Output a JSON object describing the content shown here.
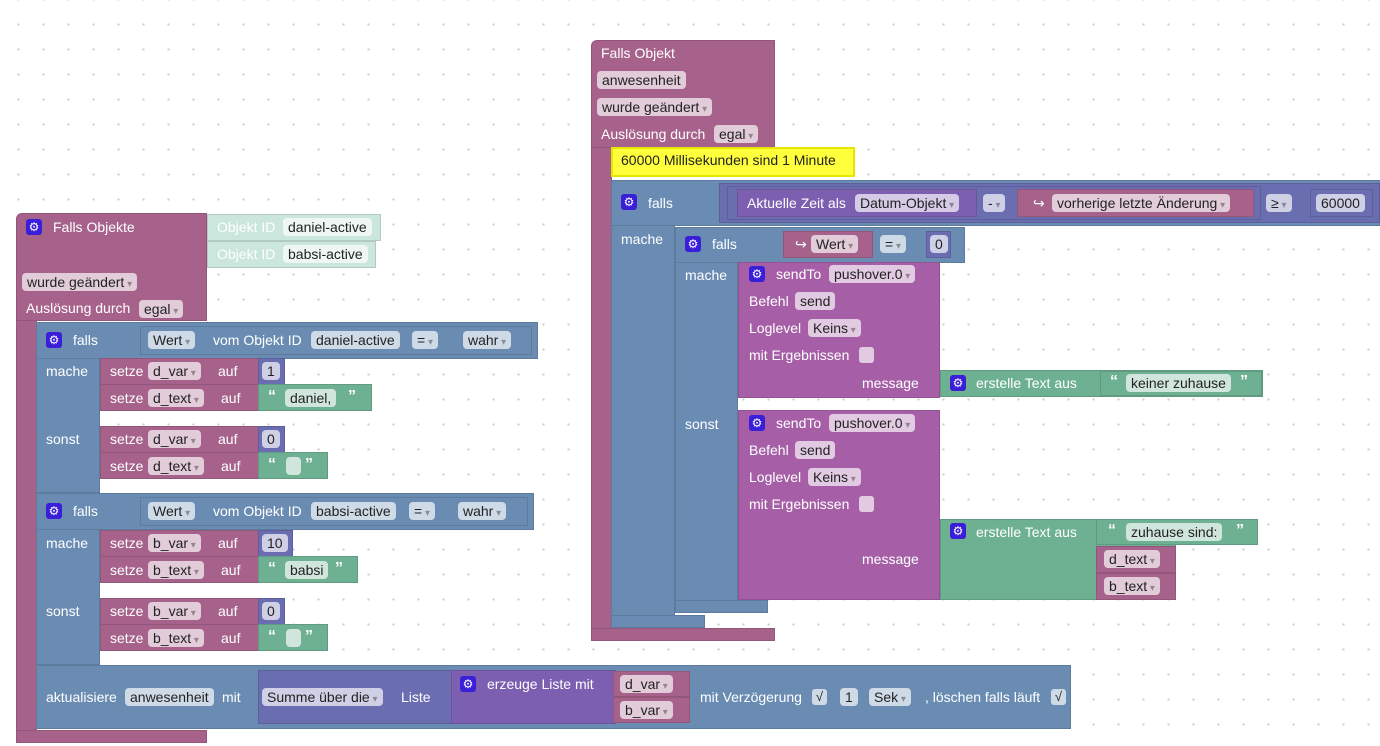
{
  "common": {
    "gear": "⚙",
    "open_quote": "“",
    "close_quote": "”",
    "check": "√"
  },
  "colors": {
    "event": "#a6628a",
    "logic": "#6a8cb3",
    "text": "#6eb092",
    "sendto": "#a65fa6",
    "math": "#6a6db0",
    "list": "#7c5fb0",
    "comment": "#ffff3c"
  },
  "left": {
    "title": "Falls Objekte",
    "object_id_label": "Objekt ID",
    "ids": [
      "daniel-active",
      "babsi-active"
    ],
    "trigger": "wurde geändert",
    "ausloesung_label": "Auslösung durch",
    "ausloesung": "egal",
    "ifs": [
      {
        "falls": "falls",
        "wert": "Wert",
        "vom": "vom Objekt ID",
        "id": "daniel-active",
        "op": "=",
        "value": "wahr",
        "mache": "mache",
        "sonst": "sonst",
        "then": [
          {
            "setze": "setze",
            "var": "d_var",
            "auf": "auf",
            "value": "1"
          },
          {
            "setze": "setze",
            "var": "d_text",
            "auf": "auf",
            "value": "daniel,"
          }
        ],
        "else": [
          {
            "setze": "setze",
            "var": "d_var",
            "auf": "auf",
            "value": "0"
          },
          {
            "setze": "setze",
            "var": "d_text",
            "auf": "auf",
            "value": ""
          }
        ]
      },
      {
        "falls": "falls",
        "wert": "Wert",
        "vom": "vom Objekt ID",
        "id": "babsi-active",
        "op": "=",
        "value": "wahr",
        "mache": "mache",
        "sonst": "sonst",
        "then": [
          {
            "setze": "setze",
            "var": "b_var",
            "auf": "auf",
            "value": "10"
          },
          {
            "setze": "setze",
            "var": "b_text",
            "auf": "auf",
            "value": "babsi"
          }
        ],
        "else": [
          {
            "setze": "setze",
            "var": "b_var",
            "auf": "auf",
            "value": "0"
          },
          {
            "setze": "setze",
            "var": "b_text",
            "auf": "auf",
            "value": ""
          }
        ]
      }
    ],
    "update": {
      "label": "aktualisiere",
      "object": "anwesenheit",
      "mit": "mit",
      "sum": "Summe über die",
      "liste": "Liste",
      "create_list": "erzeuge Liste mit",
      "items": [
        "d_var",
        "b_var"
      ],
      "delay_label": "mit Verzögerung",
      "delay_checked": true,
      "delay": "1",
      "unit": "Sek",
      "clear_label": ", löschen falls läuft",
      "clear_checked": true
    }
  },
  "right": {
    "title": "Falls Objekt",
    "object": "anwesenheit",
    "trigger": "wurde geändert",
    "ausloesung_label": "Auslösung durch",
    "ausloesung": "egal",
    "comment": "60000 Millisekunden sind 1 Minute",
    "falls": "falls",
    "mache": "mache",
    "sonst": "sonst",
    "time_label": "Aktuelle Zeit als",
    "time_format": "Datum-Objekt",
    "minus": "-",
    "prev_change": "vorherige letzte Änderung",
    "gte": "≥",
    "threshold": "60000",
    "inner_wert": "Wert",
    "inner_op": "=",
    "inner_value": "0",
    "sends": [
      {
        "sendto": "sendTo",
        "instance": "pushover.0",
        "befehl_label": "Befehl",
        "befehl": "send",
        "loglevel_label": "Loglevel",
        "loglevel": "Keins",
        "results_label": "mit Ergebnissen",
        "message_label": "message",
        "create_text": "erstelle Text aus",
        "texts": [
          "keiner zuhause"
        ]
      },
      {
        "sendto": "sendTo",
        "instance": "pushover.0",
        "befehl_label": "Befehl",
        "befehl": "send",
        "loglevel_label": "Loglevel",
        "loglevel": "Keins",
        "results_label": "mit Ergebnissen",
        "message_label": "message",
        "create_text": "erstelle Text aus",
        "texts": [
          "zuhause sind:"
        ],
        "vars": [
          "d_text",
          "b_text"
        ]
      }
    ]
  }
}
